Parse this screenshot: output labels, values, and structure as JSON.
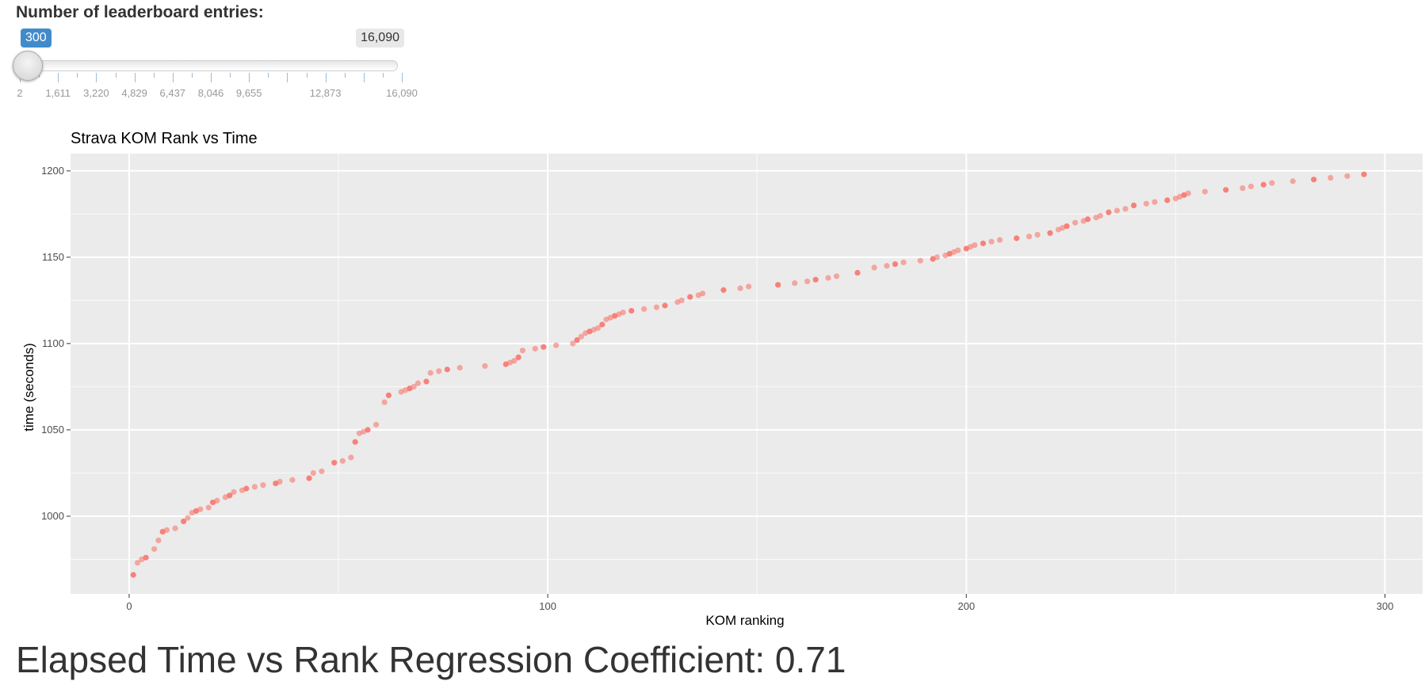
{
  "slider": {
    "label": "Number of leaderboard entries:",
    "value": 300,
    "value_label": "300",
    "min": 2,
    "max": 16090,
    "max_label": "16,090",
    "tick_labels": [
      {
        "value": 2,
        "text": "2"
      },
      {
        "value": 1611,
        "text": "1,611"
      },
      {
        "value": 3220,
        "text": "3,220"
      },
      {
        "value": 4829,
        "text": "4,829"
      },
      {
        "value": 6437,
        "text": "6,437"
      },
      {
        "value": 8046,
        "text": "8,046"
      },
      {
        "value": 9655,
        "text": "9,655"
      },
      {
        "value": 12873,
        "text": "12,873"
      },
      {
        "value": 16090,
        "text": "16,090"
      }
    ],
    "accent_color": "#428bca"
  },
  "chart_data": {
    "type": "scatter",
    "title": "Strava KOM Rank vs Time",
    "xlabel": "KOM ranking",
    "ylabel": "time (seconds)",
    "xlim": [
      -14,
      309
    ],
    "ylim": [
      955,
      1210
    ],
    "xticks": [
      0,
      100,
      200,
      300
    ],
    "yticks": [
      1000,
      1050,
      1100,
      1150,
      1200
    ],
    "grid": true,
    "panel_color": "#ebebeb",
    "point_color": "#f8766d",
    "points": [
      [
        1,
        966
      ],
      [
        2,
        973
      ],
      [
        3,
        975
      ],
      [
        4,
        976
      ],
      [
        6,
        981
      ],
      [
        7,
        986
      ],
      [
        8,
        991
      ],
      [
        9,
        992
      ],
      [
        11,
        993
      ],
      [
        13,
        997
      ],
      [
        14,
        999
      ],
      [
        15,
        1002
      ],
      [
        16,
        1003
      ],
      [
        17,
        1004
      ],
      [
        19,
        1005
      ],
      [
        20,
        1008
      ],
      [
        21,
        1009
      ],
      [
        23,
        1011
      ],
      [
        24,
        1012
      ],
      [
        25,
        1014
      ],
      [
        27,
        1015
      ],
      [
        28,
        1016
      ],
      [
        30,
        1017
      ],
      [
        32,
        1018
      ],
      [
        35,
        1019
      ],
      [
        36,
        1020
      ],
      [
        39,
        1021
      ],
      [
        43,
        1022
      ],
      [
        44,
        1025
      ],
      [
        46,
        1026
      ],
      [
        49,
        1031
      ],
      [
        51,
        1032
      ],
      [
        53,
        1034
      ],
      [
        54,
        1043
      ],
      [
        55,
        1048
      ],
      [
        56,
        1049
      ],
      [
        57,
        1050
      ],
      [
        59,
        1053
      ],
      [
        61,
        1066
      ],
      [
        62,
        1070
      ],
      [
        65,
        1072
      ],
      [
        66,
        1073
      ],
      [
        67,
        1074
      ],
      [
        68,
        1075
      ],
      [
        69,
        1077
      ],
      [
        71,
        1078
      ],
      [
        72,
        1083
      ],
      [
        74,
        1084
      ],
      [
        76,
        1085
      ],
      [
        79,
        1086
      ],
      [
        85,
        1087
      ],
      [
        90,
        1088
      ],
      [
        91,
        1089
      ],
      [
        92,
        1090
      ],
      [
        93,
        1092
      ],
      [
        94,
        1096
      ],
      [
        97,
        1097
      ],
      [
        99,
        1098
      ],
      [
        102,
        1099
      ],
      [
        106,
        1100
      ],
      [
        107,
        1102
      ],
      [
        108,
        1104
      ],
      [
        109,
        1106
      ],
      [
        110,
        1107
      ],
      [
        111,
        1108
      ],
      [
        112,
        1109
      ],
      [
        113,
        1111
      ],
      [
        114,
        1114
      ],
      [
        115,
        1115
      ],
      [
        116,
        1116
      ],
      [
        117,
        1117
      ],
      [
        118,
        1118
      ],
      [
        120,
        1119
      ],
      [
        123,
        1120
      ],
      [
        126,
        1121
      ],
      [
        128,
        1122
      ],
      [
        131,
        1124
      ],
      [
        132,
        1125
      ],
      [
        134,
        1127
      ],
      [
        136,
        1128
      ],
      [
        137,
        1129
      ],
      [
        142,
        1131
      ],
      [
        146,
        1132
      ],
      [
        148,
        1133
      ],
      [
        155,
        1134
      ],
      [
        159,
        1135
      ],
      [
        162,
        1136
      ],
      [
        164,
        1137
      ],
      [
        167,
        1138
      ],
      [
        169,
        1139
      ],
      [
        174,
        1141
      ],
      [
        178,
        1144
      ],
      [
        181,
        1145
      ],
      [
        183,
        1146
      ],
      [
        185,
        1147
      ],
      [
        189,
        1148
      ],
      [
        192,
        1149
      ],
      [
        193,
        1150
      ],
      [
        195,
        1151
      ],
      [
        196,
        1152
      ],
      [
        197,
        1153
      ],
      [
        198,
        1154
      ],
      [
        200,
        1155
      ],
      [
        201,
        1156
      ],
      [
        202,
        1157
      ],
      [
        204,
        1158
      ],
      [
        206,
        1159
      ],
      [
        208,
        1160
      ],
      [
        212,
        1161
      ],
      [
        215,
        1162
      ],
      [
        217,
        1163
      ],
      [
        220,
        1164
      ],
      [
        222,
        1166
      ],
      [
        223,
        1167
      ],
      [
        224,
        1168
      ],
      [
        226,
        1170
      ],
      [
        228,
        1171
      ],
      [
        229,
        1172
      ],
      [
        231,
        1173
      ],
      [
        232,
        1174
      ],
      [
        234,
        1176
      ],
      [
        236,
        1177
      ],
      [
        238,
        1178
      ],
      [
        240,
        1180
      ],
      [
        243,
        1181
      ],
      [
        245,
        1182
      ],
      [
        248,
        1183
      ],
      [
        250,
        1184
      ],
      [
        251,
        1185
      ],
      [
        252,
        1186
      ],
      [
        253,
        1187
      ],
      [
        257,
        1188
      ],
      [
        262,
        1189
      ],
      [
        266,
        1190
      ],
      [
        268,
        1191
      ],
      [
        271,
        1192
      ],
      [
        273,
        1193
      ],
      [
        278,
        1194
      ],
      [
        283,
        1195
      ],
      [
        287,
        1196
      ],
      [
        291,
        1197
      ],
      [
        295,
        1198
      ]
    ]
  },
  "regression": {
    "text": "Elapsed Time vs Rank Regression Coefficient: 0.71"
  }
}
